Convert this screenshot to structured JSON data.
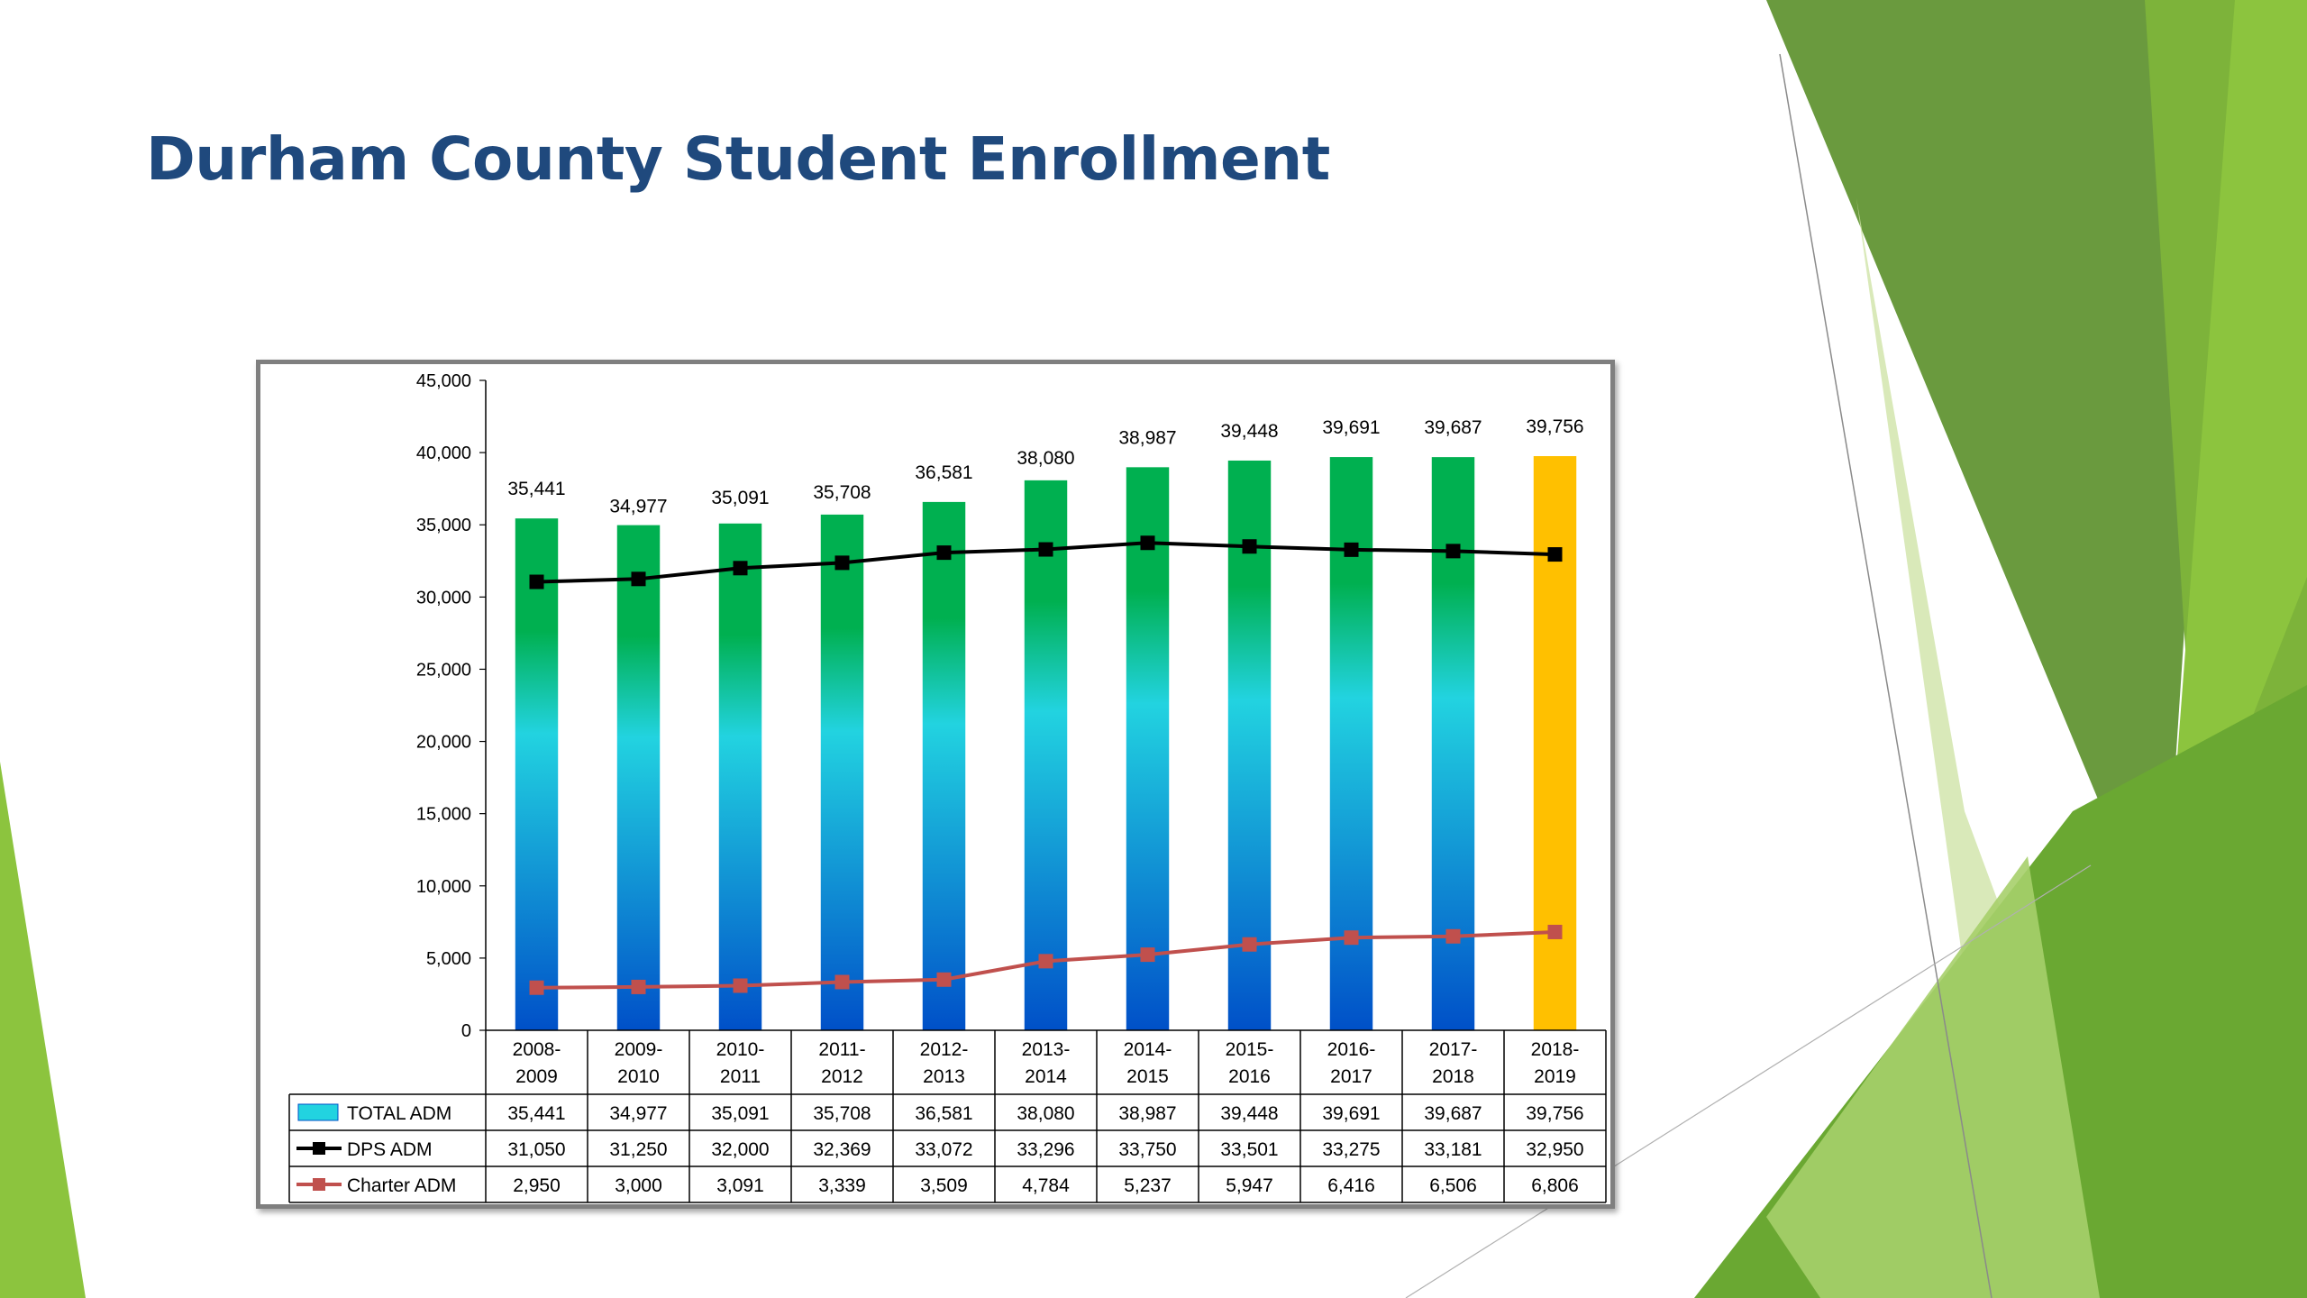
{
  "slide": {
    "title": "Durham County Student Enrollment"
  },
  "colors": {
    "title": "#1F497D",
    "bar_top": "#00B050",
    "bar_mid": "#22D3E0",
    "bar_bottom": "#0050C8",
    "highlight_bar": "#FFC000",
    "dps_line": "#000000",
    "charter_line": "#C0504D",
    "deco_greens": [
      "#6A9A3E",
      "#7DB33A",
      "#8CC43E",
      "#A6CF6A",
      "#CFE3A8"
    ]
  },
  "chart_data": {
    "type": "bar",
    "title": "",
    "ylim": [
      0,
      45000
    ],
    "ytick_step": 5000,
    "grid": false,
    "legend": "data-table",
    "categories": [
      [
        "2008-",
        "2009"
      ],
      [
        "2009-",
        "2010"
      ],
      [
        "2010-",
        "2011"
      ],
      [
        "2011-",
        "2012"
      ],
      [
        "2012-",
        "2013"
      ],
      [
        "2013-",
        "2014"
      ],
      [
        "2014-",
        "2015"
      ],
      [
        "2015-",
        "2016"
      ],
      [
        "2016-",
        "2017"
      ],
      [
        "2017-",
        "2018"
      ],
      [
        "2018-",
        "2019"
      ]
    ],
    "highlight_category_index": 10,
    "series": [
      {
        "name": "TOTAL ADM",
        "type": "bar",
        "values": [
          35441,
          34977,
          35091,
          35708,
          36581,
          38080,
          38987,
          39448,
          39691,
          39687,
          39756
        ]
      },
      {
        "name": "DPS  ADM",
        "type": "line",
        "values": [
          31050,
          31250,
          32000,
          32369,
          33072,
          33296,
          33750,
          33501,
          33275,
          33181,
          32950
        ]
      },
      {
        "name": "Charter ADM",
        "type": "line",
        "values": [
          2950,
          3000,
          3091,
          3339,
          3509,
          4784,
          5237,
          5947,
          6416,
          6506,
          6806
        ]
      }
    ]
  }
}
